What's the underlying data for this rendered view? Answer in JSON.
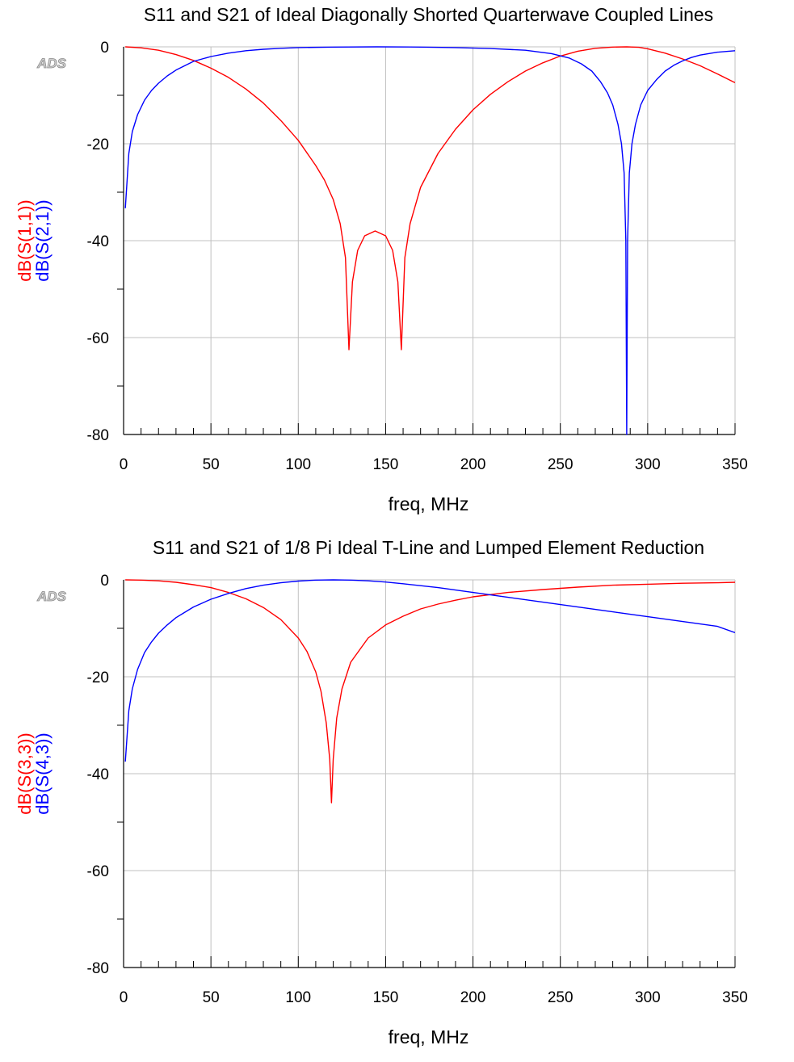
{
  "colors": {
    "s11": "#ff0000",
    "s21": "#0000ff",
    "grid": "#c0c0c0",
    "axis": "#000000"
  },
  "chart_data": [
    {
      "type": "line",
      "title": "S11 and S21 of Ideal Diagonally Shorted Quarterwave Coupled Lines",
      "xlabel": "freq, MHz",
      "ylabel_lines": [
        "dB(S(1,1))",
        "dB(S(2,1))"
      ],
      "watermark": "ADS",
      "xlim": [
        0,
        350
      ],
      "ylim": [
        -80,
        0
      ],
      "x_ticks": [
        0,
        50,
        100,
        150,
        200,
        250,
        300,
        350
      ],
      "y_ticks": [
        0,
        -20,
        -40,
        -60,
        -80
      ],
      "grid": true,
      "series": [
        {
          "name": "dB(S(1,1))",
          "color": "#ff0000",
          "x": [
            1,
            10,
            20,
            30,
            40,
            50,
            60,
            70,
            80,
            90,
            100,
            110,
            115,
            120,
            124,
            127,
            129,
            131,
            134,
            138,
            144,
            150,
            154,
            157,
            159,
            161,
            164,
            170,
            180,
            190,
            200,
            210,
            220,
            230,
            240,
            250,
            260,
            270,
            280,
            288,
            295,
            300,
            310,
            320,
            330,
            340,
            350
          ],
          "values": [
            0,
            -0.2,
            -0.7,
            -1.6,
            -2.8,
            -4.4,
            -6.3,
            -8.7,
            -11.6,
            -15.2,
            -19.3,
            -24.5,
            -27.5,
            -31.5,
            -36.5,
            -43.5,
            -62.5,
            -48.5,
            -42,
            -39,
            -38,
            -39,
            -42,
            -48.5,
            -62.5,
            -43.5,
            -36.5,
            -29,
            -22,
            -17,
            -13,
            -9.8,
            -7.2,
            -5,
            -3.3,
            -1.9,
            -0.9,
            -0.3,
            -0.05,
            0,
            -0.1,
            -0.4,
            -1.3,
            -2.5,
            -3.9,
            -5.6,
            -7.4
          ]
        },
        {
          "name": "dB(S(2,1))",
          "color": "#0000ff",
          "x": [
            1,
            3,
            5,
            8,
            12,
            16,
            20,
            25,
            30,
            40,
            50,
            60,
            70,
            80,
            90,
            100,
            120,
            145,
            170,
            190,
            210,
            230,
            245,
            255,
            262,
            268,
            273,
            277,
            280,
            283,
            285,
            286.5,
            287.5,
            288,
            288.5,
            289.5,
            291,
            293,
            296,
            300,
            305,
            310,
            315,
            320,
            325,
            330,
            340,
            350
          ],
          "values": [
            -33.3,
            -22,
            -17.5,
            -14,
            -11,
            -9,
            -7.5,
            -6,
            -4.8,
            -3,
            -2,
            -1.3,
            -0.8,
            -0.5,
            -0.3,
            -0.15,
            -0.05,
            0,
            -0.05,
            -0.15,
            -0.35,
            -0.7,
            -1.4,
            -2.3,
            -3.5,
            -5,
            -7.2,
            -9.5,
            -12,
            -16,
            -20,
            -26,
            -40,
            -80,
            -40,
            -26,
            -20,
            -16,
            -12,
            -9,
            -6.8,
            -5,
            -3.8,
            -2.9,
            -2.2,
            -1.7,
            -1.1,
            -0.8
          ]
        }
      ]
    },
    {
      "type": "line",
      "title": "S11 and S21 of 1/8 Pi Ideal T-Line and Lumped Element Reduction",
      "xlabel": "freq, MHz",
      "ylabel_lines": [
        "dB(S(3,3))",
        "dB(S(4,3))"
      ],
      "watermark": "ADS",
      "xlim": [
        0,
        350
      ],
      "ylim": [
        -80,
        0
      ],
      "x_ticks": [
        0,
        50,
        100,
        150,
        200,
        250,
        300,
        350
      ],
      "y_ticks": [
        0,
        -20,
        -40,
        -60,
        -80
      ],
      "grid": true,
      "series": [
        {
          "name": "dB(S(3,3))",
          "color": "#ff0000",
          "x": [
            1,
            10,
            20,
            30,
            40,
            50,
            60,
            70,
            80,
            90,
            100,
            105,
            110,
            113,
            116,
            118,
            119,
            120,
            122,
            125,
            130,
            140,
            150,
            160,
            170,
            180,
            190,
            200,
            220,
            240,
            260,
            280,
            300,
            320,
            340,
            350
          ],
          "values": [
            0,
            -0.05,
            -0.2,
            -0.5,
            -1,
            -1.6,
            -2.6,
            -3.9,
            -5.7,
            -8.2,
            -12,
            -14.8,
            -19,
            -23,
            -29.5,
            -37,
            -46,
            -37,
            -28.5,
            -22.5,
            -17,
            -12,
            -9.3,
            -7.5,
            -6,
            -5,
            -4.2,
            -3.5,
            -2.6,
            -2,
            -1.5,
            -1.1,
            -0.9,
            -0.7,
            -0.6,
            -0.5
          ]
        },
        {
          "name": "dB(S(4,3))",
          "color": "#0000ff",
          "x": [
            1,
            3,
            5,
            8,
            12,
            16,
            20,
            25,
            30,
            40,
            50,
            60,
            70,
            80,
            90,
            100,
            110,
            120,
            130,
            140,
            150,
            160,
            170,
            180,
            200,
            220,
            240,
            260,
            280,
            300,
            320,
            340,
            350
          ],
          "values": [
            -37.5,
            -27,
            -22.5,
            -18.5,
            -15,
            -12.8,
            -11,
            -9.3,
            -7.8,
            -5.6,
            -4,
            -2.8,
            -1.8,
            -1.1,
            -0.6,
            -0.25,
            -0.05,
            0,
            -0.05,
            -0.2,
            -0.45,
            -0.8,
            -1.2,
            -1.6,
            -2.6,
            -3.6,
            -4.6,
            -5.6,
            -6.6,
            -7.6,
            -8.6,
            -9.6,
            -10.9
          ]
        }
      ]
    }
  ]
}
